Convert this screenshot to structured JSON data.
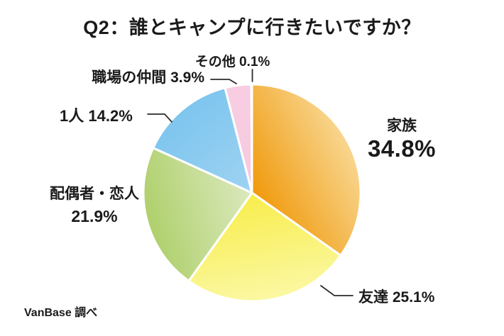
{
  "title": "Q2：誰とキャンプに行きたいですか？",
  "source": "VanBase 調べ",
  "colors": {
    "background": "#ffffff",
    "text": "#1a1a1a",
    "slice_gap": "#ffffff",
    "leader_line": "#2b2b2b"
  },
  "chart_data": {
    "type": "pie",
    "title": "Q2：誰とキャンプに行きたいですか？",
    "source": "VanBase 調べ",
    "start_angle_deg": 0,
    "direction": "clockwise",
    "total": 100.0,
    "legend_position": "labels-around-pie",
    "slices": [
      {
        "label": "家族",
        "value": 34.8,
        "pct_text": "34.8%",
        "color_inner": "#F0990B",
        "color_outer": "#F8D68F"
      },
      {
        "label": "友達",
        "value": 25.1,
        "pct_text": "25.1%",
        "color_inner": "#F8ED4B",
        "color_outer": "#FBF8A3"
      },
      {
        "label": "配偶者・恋人",
        "value": 21.9,
        "pct_text": "21.9%",
        "color_inner": "#DBE9BE",
        "color_outer": "#AFD06C"
      },
      {
        "label": "1人",
        "value": 14.2,
        "pct_text": "14.2%",
        "color_inner": "#9ED3F2",
        "color_outer": "#7EC5EE"
      },
      {
        "label": "職場の仲間",
        "value": 3.9,
        "pct_text": "3.9%",
        "color_inner": "#F6C9DE",
        "color_outer": "#F8CDE2"
      },
      {
        "label": "その他",
        "value": 0.1,
        "pct_text": "0.1%",
        "color_inner": "#DCDCDC",
        "color_outer": "#DCDCDC"
      }
    ]
  }
}
